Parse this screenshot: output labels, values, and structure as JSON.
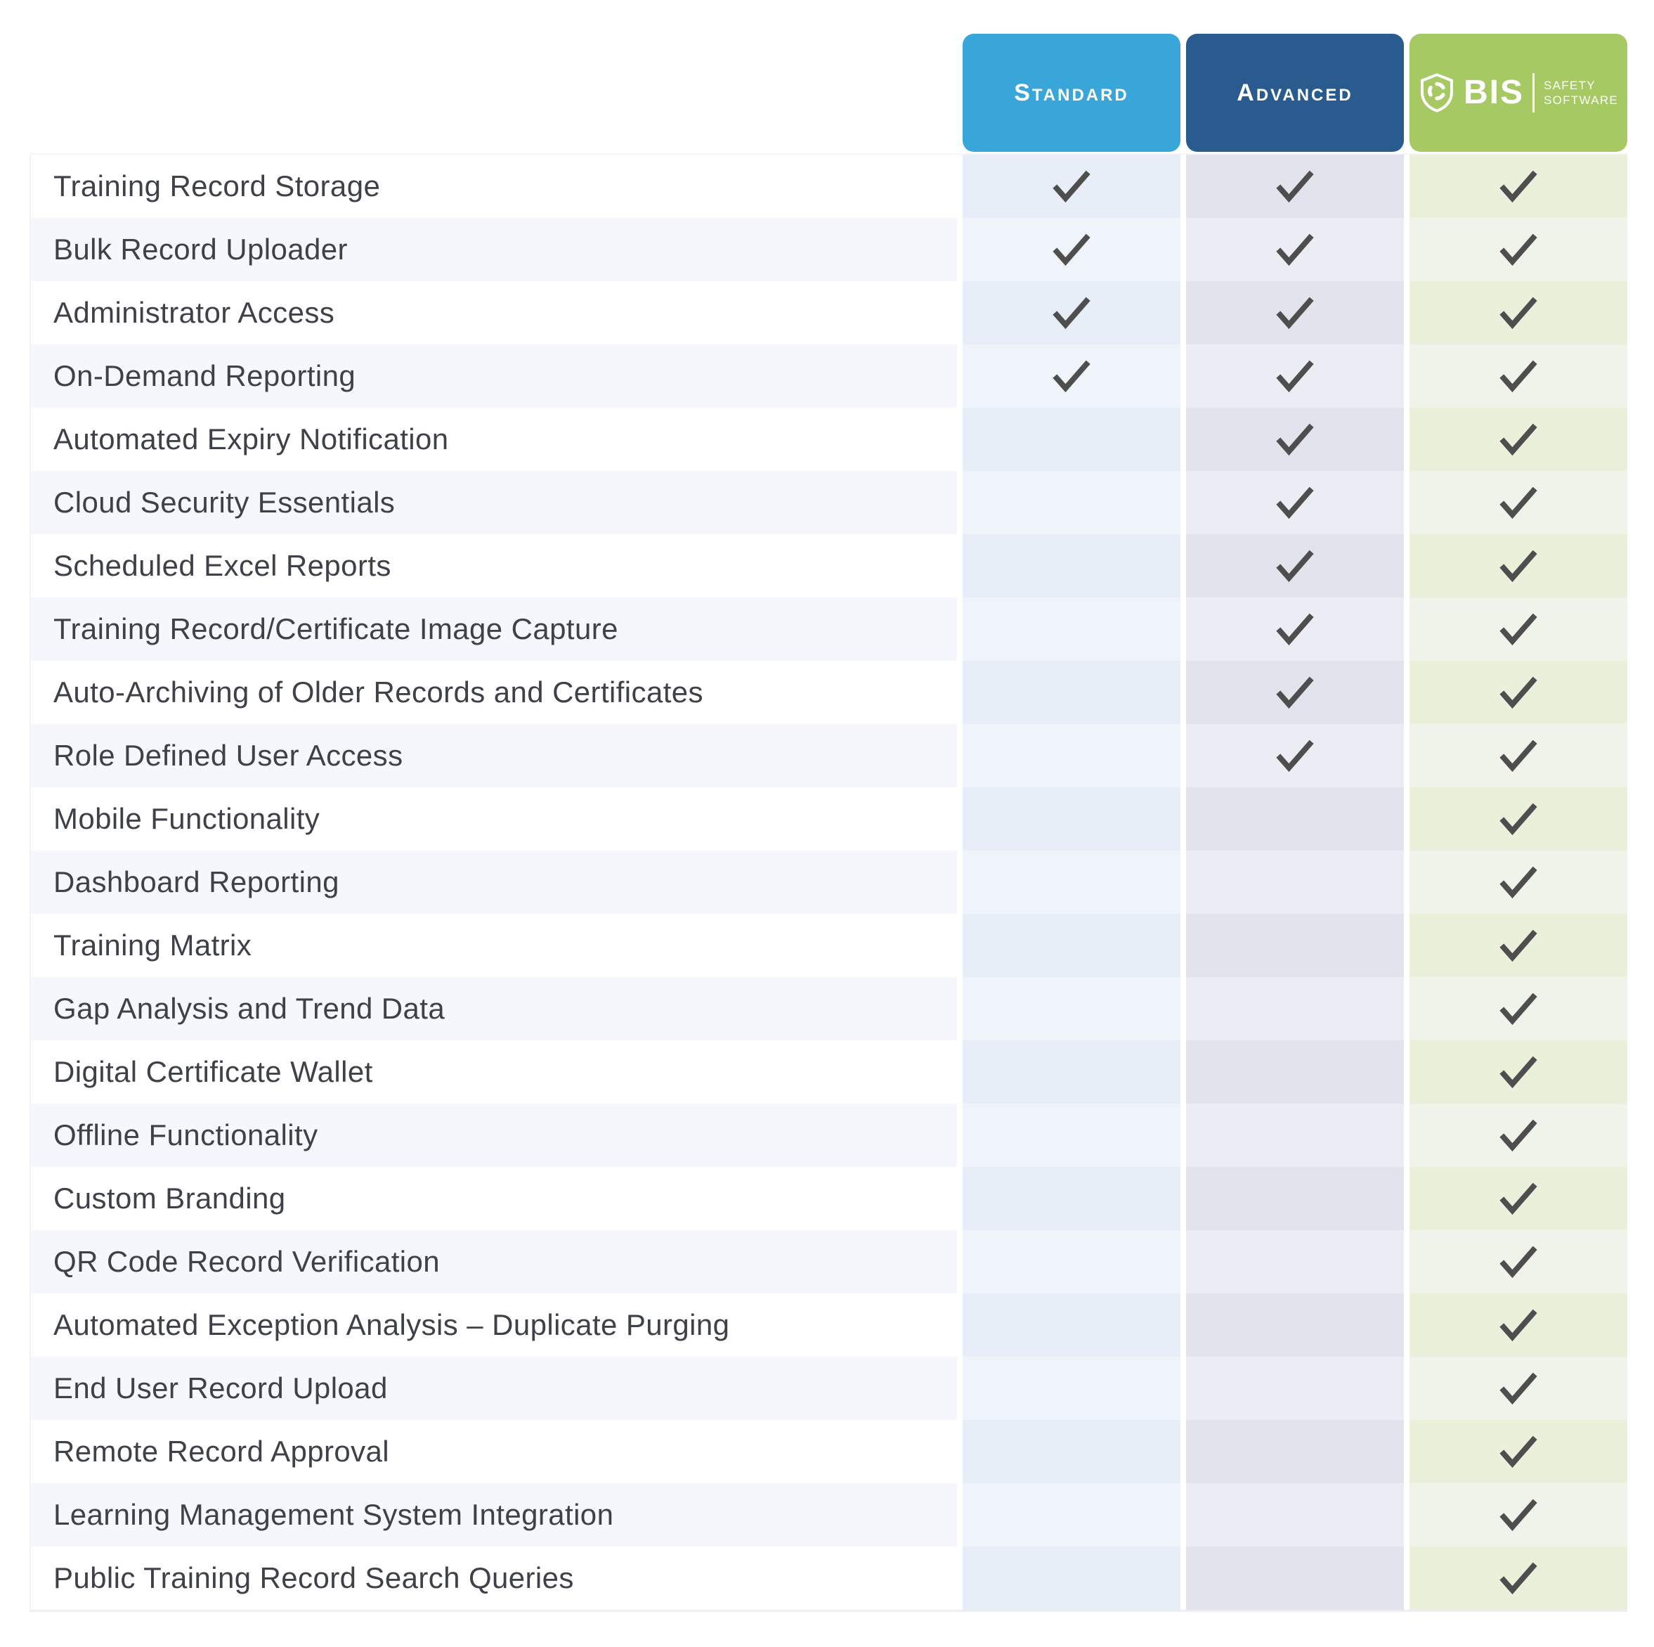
{
  "plans": [
    {
      "id": "standard",
      "label": "Standard",
      "badge_color": "#38a6d8"
    },
    {
      "id": "advanced",
      "label": "Advanced",
      "badge_color": "#2a5b8e"
    },
    {
      "id": "bis",
      "label": "BIS Safety Software",
      "badge_color": "#a6c964",
      "logo": {
        "brand": "BIS",
        "tagline_line1": "SAFETY",
        "tagline_line2": "SOFTWARE"
      }
    }
  ],
  "features": [
    {
      "label": "Training Record Storage",
      "standard": true,
      "advanced": true,
      "bis": true
    },
    {
      "label": "Bulk Record Uploader",
      "standard": true,
      "advanced": true,
      "bis": true
    },
    {
      "label": "Administrator Access",
      "standard": true,
      "advanced": true,
      "bis": true
    },
    {
      "label": "On-Demand Reporting",
      "standard": true,
      "advanced": true,
      "bis": true
    },
    {
      "label": "Automated Expiry Notification",
      "standard": false,
      "advanced": true,
      "bis": true
    },
    {
      "label": "Cloud Security Essentials",
      "standard": false,
      "advanced": true,
      "bis": true
    },
    {
      "label": "Scheduled Excel Reports",
      "standard": false,
      "advanced": true,
      "bis": true
    },
    {
      "label": "Training Record/Certificate Image Capture",
      "standard": false,
      "advanced": true,
      "bis": true
    },
    {
      "label": "Auto-Archiving of Older Records and Certificates",
      "standard": false,
      "advanced": true,
      "bis": true
    },
    {
      "label": "Role Defined User Access",
      "standard": false,
      "advanced": true,
      "bis": true
    },
    {
      "label": "Mobile Functionality",
      "standard": false,
      "advanced": false,
      "bis": true
    },
    {
      "label": "Dashboard Reporting",
      "standard": false,
      "advanced": false,
      "bis": true
    },
    {
      "label": "Training Matrix",
      "standard": false,
      "advanced": false,
      "bis": true
    },
    {
      "label": "Gap Analysis and Trend Data",
      "standard": false,
      "advanced": false,
      "bis": true
    },
    {
      "label": "Digital Certificate Wallet",
      "standard": false,
      "advanced": false,
      "bis": true
    },
    {
      "label": "Offline Functionality",
      "standard": false,
      "advanced": false,
      "bis": true
    },
    {
      "label": "Custom Branding",
      "standard": false,
      "advanced": false,
      "bis": true
    },
    {
      "label": "QR Code Record Verification",
      "standard": false,
      "advanced": false,
      "bis": true
    },
    {
      "label": "Automated Exception Analysis – Duplicate Purging",
      "standard": false,
      "advanced": false,
      "bis": true
    },
    {
      "label": "End User Record Upload",
      "standard": false,
      "advanced": false,
      "bis": true
    },
    {
      "label": "Remote Record Approval",
      "standard": false,
      "advanced": false,
      "bis": true
    },
    {
      "label": "Learning Management System Integration",
      "standard": false,
      "advanced": false,
      "bis": true
    },
    {
      "label": "Public Training Record Search Queries",
      "standard": false,
      "advanced": false,
      "bis": true
    }
  ],
  "styles": {
    "check_color": "#4e4e4e",
    "label_text_color": "#3e4148",
    "row_colors": {
      "label_odd": "#ffffff",
      "label_even": "#f5f7fc",
      "standard_odd": "#e7eef7",
      "standard_even": "#eff4fa",
      "advanced_odd": "#e3e3ed",
      "advanced_even": "#ecedf4",
      "bis_odd": "#eaf0da",
      "bis_even": "#f0f3ea"
    }
  }
}
